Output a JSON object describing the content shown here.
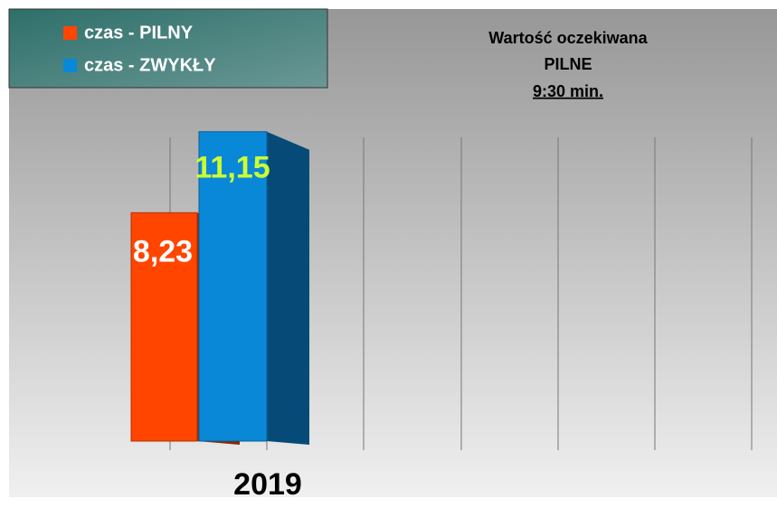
{
  "chart_data": {
    "type": "bar3d",
    "categories": [
      "2019"
    ],
    "series": [
      {
        "name": "czas - PILNY",
        "color": "#ff4500",
        "values": [
          8.23
        ],
        "value_labels": [
          "8,23"
        ]
      },
      {
        "name": "czas - ZWYKŁY",
        "color": "#0a88d8",
        "values": [
          11.15
        ],
        "value_labels": [
          "11,15"
        ]
      }
    ],
    "annotation": [
      "Wartość oczekiwana",
      "PILNE",
      "9:30 min."
    ]
  }
}
